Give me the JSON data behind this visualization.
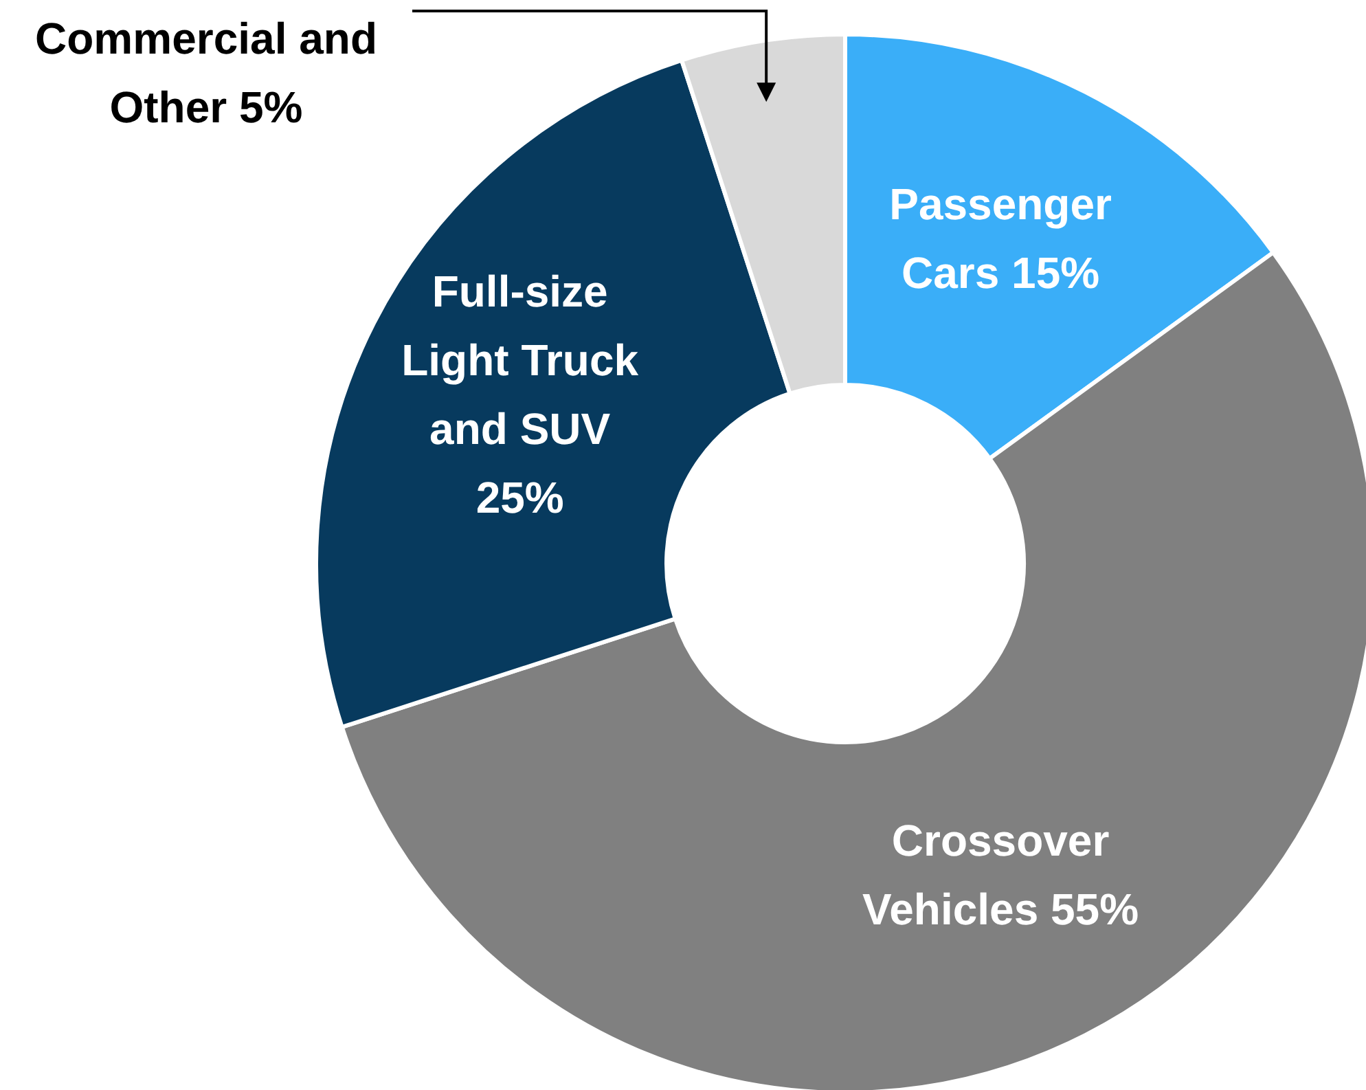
{
  "chart_data": {
    "type": "donut",
    "categories": [
      "Passenger Cars",
      "Crossover Vehicles",
      "Full-size Light Truck and SUV",
      "Commercial and Other"
    ],
    "values": [
      15,
      55,
      25,
      5
    ],
    "value_labels": [
      "15%",
      "55%",
      "25%",
      "5%"
    ],
    "colors": [
      "#3aaef8",
      "#808080",
      "#073a5e",
      "#d9d9d9"
    ]
  }
}
